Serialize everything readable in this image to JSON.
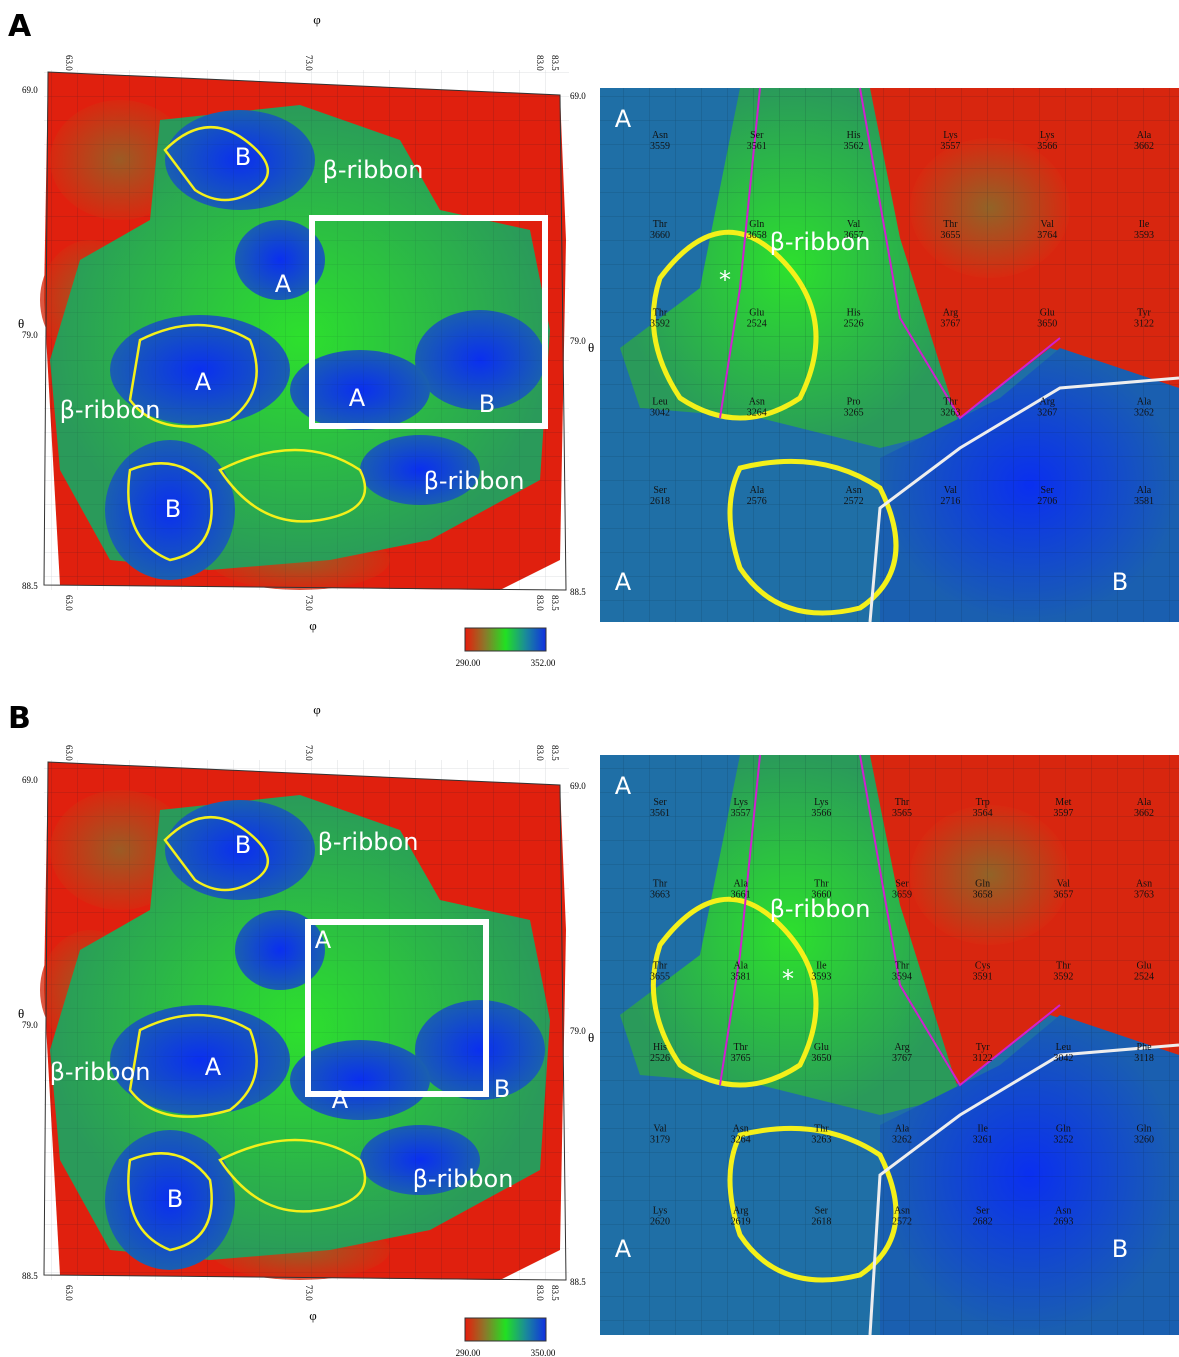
{
  "panels": [
    {
      "label": "A",
      "map": {
        "x_axis": "φ",
        "y_axis": "θ",
        "x_ticks": [
          "63.0",
          "73.0",
          "83.0",
          "83.5"
        ],
        "y_ticks": [
          "69.0",
          "79.0",
          "88.5"
        ],
        "regions": [
          "B",
          "β-ribbon",
          "A",
          "A",
          "β-ribbon",
          "A",
          "B",
          "B",
          "β-ribbon"
        ],
        "colorbar": {
          "min": "290.00",
          "max": "352.00"
        }
      },
      "zoom": {
        "regions": [
          "A",
          "β-ribbon",
          "A",
          "B"
        ],
        "asterisk": "*",
        "residues": [
          {
            "name": "Asn",
            "number": "3559"
          },
          {
            "name": "Ser",
            "number": "3561"
          },
          {
            "name": "His",
            "number": "3562"
          },
          {
            "name": "Lys",
            "number": "3557"
          },
          {
            "name": "Lys",
            "number": "3566"
          },
          {
            "name": "Ala",
            "number": "3662"
          },
          {
            "name": "Thr",
            "number": "3660"
          },
          {
            "name": "Gln",
            "number": "3658"
          },
          {
            "name": "Val",
            "number": "3657"
          },
          {
            "name": "Thr",
            "number": "3655"
          },
          {
            "name": "Val",
            "number": "3764"
          },
          {
            "name": "Ile",
            "number": "3593"
          },
          {
            "name": "Thr",
            "number": "3592"
          },
          {
            "name": "Glu",
            "number": "2524"
          },
          {
            "name": "His",
            "number": "2526"
          },
          {
            "name": "Arg",
            "number": "3767"
          },
          {
            "name": "Glu",
            "number": "3650"
          },
          {
            "name": "Tyr",
            "number": "3122"
          },
          {
            "name": "Leu",
            "number": "3042"
          },
          {
            "name": "Asn",
            "number": "3264"
          },
          {
            "name": "Pro",
            "number": "3265"
          },
          {
            "name": "Thr",
            "number": "3263"
          },
          {
            "name": "Arg",
            "number": "3267"
          },
          {
            "name": "Ala",
            "number": "3262"
          },
          {
            "name": "Ser",
            "number": "2618"
          },
          {
            "name": "Ala",
            "number": "2576"
          },
          {
            "name": "Asn",
            "number": "2572"
          },
          {
            "name": "Val",
            "number": "2716"
          },
          {
            "name": "Ser",
            "number": "2706"
          },
          {
            "name": "Ala",
            "number": "3581"
          }
        ]
      }
    },
    {
      "label": "B",
      "map": {
        "x_axis": "φ",
        "y_axis": "θ",
        "x_ticks": [
          "63.0",
          "73.0",
          "83.0",
          "83.5"
        ],
        "y_ticks": [
          "69.0",
          "79.0",
          "88.5"
        ],
        "regions": [
          "B",
          "β-ribbon",
          "A",
          "A",
          "β-ribbon",
          "A",
          "B",
          "B",
          "β-ribbon"
        ],
        "colorbar": {
          "min": "290.00",
          "max": "350.00"
        }
      },
      "zoom": {
        "regions": [
          "A",
          "β-ribbon",
          "A",
          "B"
        ],
        "asterisk": "*",
        "residues": [
          {
            "name": "Ser",
            "number": "3561"
          },
          {
            "name": "Lys",
            "number": "3557"
          },
          {
            "name": "Lys",
            "number": "3566"
          },
          {
            "name": "Thr",
            "number": "3565"
          },
          {
            "name": "Trp",
            "number": "3564"
          },
          {
            "name": "Met",
            "number": "3597"
          },
          {
            "name": "Ala",
            "number": "3662"
          },
          {
            "name": "Thr",
            "number": "3663"
          },
          {
            "name": "Ala",
            "number": "3661"
          },
          {
            "name": "Thr",
            "number": "3660"
          },
          {
            "name": "Ser",
            "number": "3659"
          },
          {
            "name": "Gln",
            "number": "3658"
          },
          {
            "name": "Val",
            "number": "3657"
          },
          {
            "name": "Asn",
            "number": "3763"
          },
          {
            "name": "Thr",
            "number": "3655"
          },
          {
            "name": "Ala",
            "number": "3581"
          },
          {
            "name": "Ile",
            "number": "3593"
          },
          {
            "name": "Thr",
            "number": "3594"
          },
          {
            "name": "Cys",
            "number": "3591"
          },
          {
            "name": "Thr",
            "number": "3592"
          },
          {
            "name": "Glu",
            "number": "2524"
          },
          {
            "name": "His",
            "number": "2526"
          },
          {
            "name": "Thr",
            "number": "3765"
          },
          {
            "name": "Glu",
            "number": "3650"
          },
          {
            "name": "Arg",
            "number": "3767"
          },
          {
            "name": "Tyr",
            "number": "3122"
          },
          {
            "name": "Leu",
            "number": "3042"
          },
          {
            "name": "Phe",
            "number": "3118"
          },
          {
            "name": "Val",
            "number": "3179"
          },
          {
            "name": "Asn",
            "number": "3264"
          },
          {
            "name": "Thr",
            "number": "3263"
          },
          {
            "name": "Ala",
            "number": "3262"
          },
          {
            "name": "Ile",
            "number": "3261"
          },
          {
            "name": "Gln",
            "number": "3252"
          },
          {
            "name": "Gln",
            "number": "3260"
          },
          {
            "name": "Lys",
            "number": "2620"
          },
          {
            "name": "Arg",
            "number": "2619"
          },
          {
            "name": "Ser",
            "number": "2618"
          },
          {
            "name": "Asn",
            "number": "2572"
          },
          {
            "name": "Ser",
            "number": "2682"
          },
          {
            "name": "Asn",
            "number": "2693"
          }
        ]
      }
    }
  ]
}
